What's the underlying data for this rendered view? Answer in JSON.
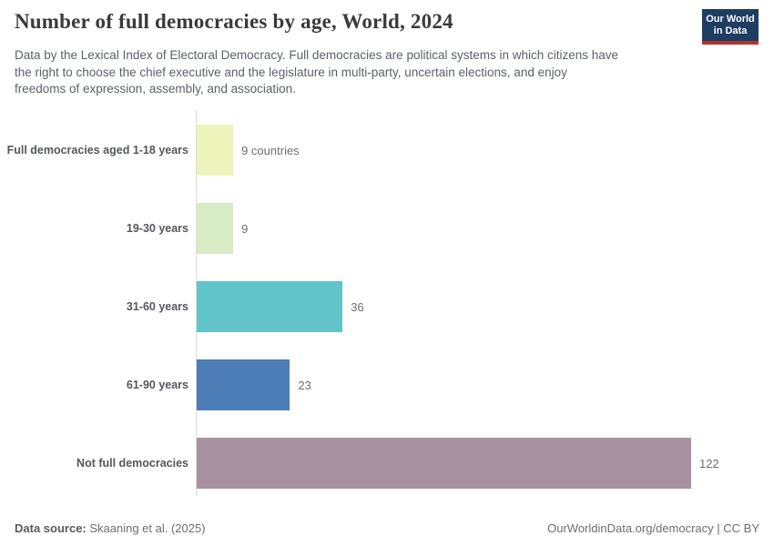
{
  "header": {
    "subtitle_lines": [
      "Data by the Lexical Index of Electoral Democracy. Full democracies are political systems in which citizens have",
      "the right to choose the chief executive and the legislature in multi-party, uncertain elections, and enjoy",
      "freedoms of expression, assembly, and association."
    ],
    "logo": {
      "line1": "Our World",
      "line2": "in Data",
      "bg_color": "#1d3d63",
      "accent_color": "#b0342c"
    }
  },
  "chart_data": {
    "type": "bar",
    "orientation": "horizontal",
    "title": "Number of full democracies by age, World, 2024",
    "xlim": [
      0,
      122
    ],
    "grid": false,
    "legend": "none",
    "categories": [
      "Full democracies aged 1-18 years",
      "19-30 years",
      "31-60 years",
      "61-90 years",
      "Not full democracies"
    ],
    "values": [
      9,
      9,
      36,
      23,
      122
    ],
    "rows": [
      {
        "label": "Full democracies aged 1-18 years",
        "value": 9,
        "value_label": "9 countries",
        "color": "#ecf4bb"
      },
      {
        "label": "19-30 years",
        "value": 9,
        "value_label": "9",
        "color": "#d7ecc5"
      },
      {
        "label": "31-60 years",
        "value": 36,
        "value_label": "36",
        "color": "#61c4ca"
      },
      {
        "label": "61-90 years",
        "value": 23,
        "value_label": "23",
        "color": "#4d7db7"
      },
      {
        "label": "Not full democracies",
        "value": 122,
        "value_label": "122",
        "color": "#a892a0"
      }
    ]
  },
  "footer": {
    "source_label": "Data source:",
    "source_value": " Skaaning et al. (2025)",
    "license": "OurWorldinData.org/democracy | CC BY"
  }
}
